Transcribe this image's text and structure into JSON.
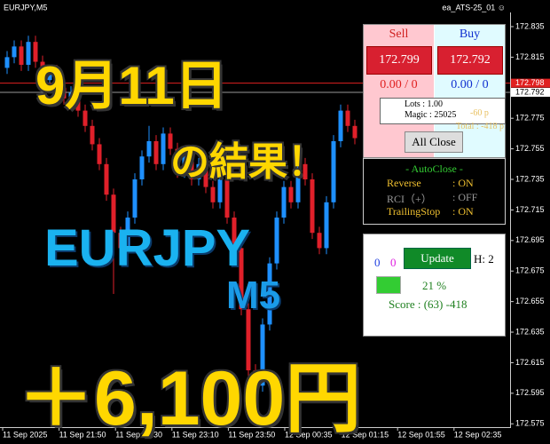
{
  "window": {
    "title": "EURJPY,M5",
    "ea_label": "ea_ATS-25_01 ☺"
  },
  "chart_data": {
    "type": "candlestick",
    "ylim": [
      172.5734,
      172.8408
    ],
    "yticks": [
      172.835,
      172.815,
      172.775,
      172.755,
      172.735,
      172.715,
      172.695,
      172.675,
      172.655,
      172.635,
      172.615,
      172.595,
      172.575
    ],
    "x_labels": [
      "11 Sep 2025",
      "11 Sep 21:50",
      "11 Sep 22:30",
      "11 Sep 23:10",
      "11 Sep 23:50",
      "12 Sep 00:35",
      "12 Sep 01:15",
      "12 Sep 01:55",
      "12 Sep 02:35"
    ],
    "ask": 172.798,
    "bid": 172.792,
    "up_color": "#1e90ff",
    "down_color": "#e0202a",
    "candles": [
      [
        172.808,
        172.819,
        172.804,
        172.815
      ],
      [
        172.815,
        172.826,
        172.811,
        172.822
      ],
      [
        172.822,
        172.826,
        172.806,
        172.81
      ],
      [
        172.81,
        172.829,
        172.806,
        172.825
      ],
      [
        172.825,
        172.829,
        172.808,
        172.812
      ],
      [
        172.812,
        172.816,
        172.796,
        172.8
      ],
      [
        172.8,
        172.81,
        172.796,
        172.806
      ],
      [
        172.806,
        172.81,
        172.791,
        172.795
      ],
      [
        172.795,
        172.799,
        172.784,
        172.788
      ],
      [
        172.788,
        172.796,
        172.784,
        172.792
      ],
      [
        172.792,
        172.796,
        172.776,
        172.78
      ],
      [
        172.78,
        172.784,
        172.766,
        172.77
      ],
      [
        172.77,
        172.774,
        172.754,
        172.758
      ],
      [
        172.758,
        172.762,
        172.741,
        172.745
      ],
      [
        172.745,
        172.749,
        172.721,
        172.725
      ],
      [
        172.725,
        172.729,
        172.66,
        172.7
      ],
      [
        172.7,
        172.704,
        172.686,
        172.69
      ],
      [
        172.69,
        172.714,
        172.686,
        172.71
      ],
      [
        172.71,
        172.739,
        172.706,
        172.735
      ],
      [
        172.735,
        172.754,
        172.731,
        172.75
      ],
      [
        172.75,
        172.77,
        172.746,
        172.76
      ],
      [
        172.76,
        172.764,
        172.741,
        172.745
      ],
      [
        172.745,
        172.769,
        172.741,
        172.765
      ],
      [
        172.765,
        172.769,
        172.751,
        172.755
      ],
      [
        172.755,
        172.759,
        172.736,
        172.74
      ],
      [
        172.74,
        172.754,
        172.736,
        172.75
      ],
      [
        172.75,
        172.754,
        172.731,
        172.735
      ],
      [
        172.735,
        172.749,
        172.731,
        172.745
      ],
      [
        172.745,
        172.749,
        172.726,
        172.73
      ],
      [
        172.73,
        172.734,
        172.716,
        172.72
      ],
      [
        172.72,
        172.739,
        172.716,
        172.735
      ],
      [
        172.735,
        172.739,
        172.706,
        172.71
      ],
      [
        172.71,
        172.714,
        172.686,
        172.69
      ],
      [
        172.69,
        172.694,
        172.646,
        172.65
      ],
      [
        172.65,
        172.654,
        172.59,
        172.61
      ],
      [
        172.61,
        172.614,
        172.585,
        172.6
      ],
      [
        172.6,
        172.644,
        172.596,
        172.64
      ],
      [
        172.64,
        172.684,
        172.636,
        172.68
      ],
      [
        172.68,
        172.714,
        172.676,
        172.71
      ],
      [
        172.71,
        172.734,
        172.706,
        172.73
      ],
      [
        172.73,
        172.734,
        172.716,
        172.72
      ],
      [
        172.72,
        172.749,
        172.716,
        172.745
      ],
      [
        172.745,
        172.749,
        172.731,
        172.735
      ],
      [
        172.735,
        172.739,
        172.696,
        172.7
      ],
      [
        172.7,
        172.704,
        172.686,
        172.69
      ],
      [
        172.69,
        172.724,
        172.686,
        172.72
      ],
      [
        172.72,
        172.764,
        172.716,
        172.76
      ],
      [
        172.76,
        172.784,
        172.756,
        172.78
      ],
      [
        172.78,
        172.784,
        172.766,
        172.77
      ],
      [
        172.77,
        172.774,
        172.758,
        172.762
      ]
    ]
  },
  "overlay": {
    "date": "9月11日",
    "result": "の結果！",
    "symbol": "EURJPY",
    "timeframe": "M5",
    "profit": "＋6,100円"
  },
  "panel": {
    "sell": "Sell",
    "buy": "Buy",
    "sell_price": "172.799",
    "buy_price": "172.792",
    "sell_pl": "0.00 / 0",
    "buy_pl": "0.00 / 0",
    "lots": "Lots   : 1.00",
    "magic": "Magic : 25025",
    "pips": "-60 p",
    "total": "Total : -418 p",
    "all_close": "All Close",
    "autoclose": "- AutoClose -",
    "reverse": "Reverse",
    "reverse_state": ": ON",
    "rci": "RCI（+）",
    "rci_state": ": OFF",
    "trailing": "TrailingStop",
    "trailing_state": ": ON",
    "count_blue": "0",
    "count_magenta": "0",
    "update": "Update",
    "h": "H: 2",
    "percent": "21 %",
    "score": "Score : (63) -418"
  }
}
